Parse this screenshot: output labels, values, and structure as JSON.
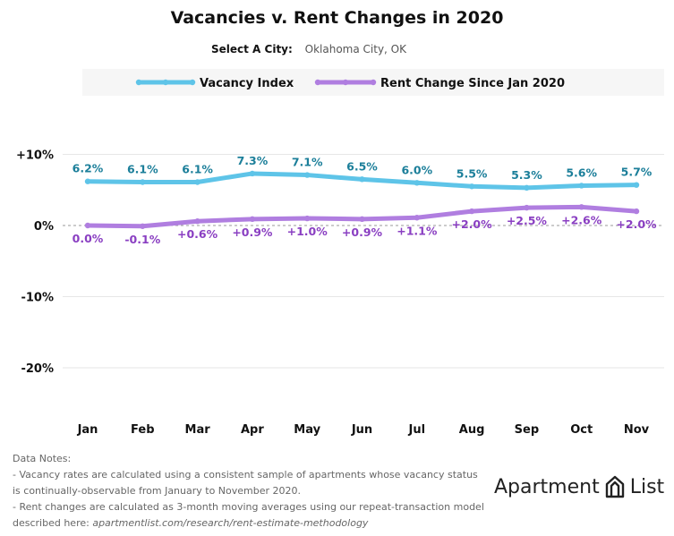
{
  "title": "Vacancies v. Rent Changes in 2020",
  "city_selector": {
    "label": "Select A City:",
    "value": "Oklahoma City, OK"
  },
  "colors": {
    "vacancy": "#5ec4e8",
    "rent": "#b07ee0",
    "vacancy_label": "#1c7f9a",
    "rent_label": "#8a3fc2"
  },
  "chart_data": {
    "type": "line",
    "categories": [
      "Jan",
      "Feb",
      "Mar",
      "Apr",
      "May",
      "Jun",
      "Jul",
      "Aug",
      "Sep",
      "Oct",
      "Nov"
    ],
    "series": [
      {
        "name": "Vacancy Index",
        "values": [
          6.2,
          6.1,
          6.1,
          7.3,
          7.1,
          6.5,
          6.0,
          5.5,
          5.3,
          5.6,
          5.7
        ],
        "labels": [
          "6.2%",
          "6.1%",
          "6.1%",
          "7.3%",
          "7.1%",
          "6.5%",
          "6.0%",
          "5.5%",
          "5.3%",
          "5.6%",
          "5.7%"
        ]
      },
      {
        "name": "Rent Change Since Jan 2020",
        "values": [
          0.0,
          -0.1,
          0.6,
          0.9,
          1.0,
          0.9,
          1.1,
          2.0,
          2.5,
          2.6,
          2.0
        ],
        "labels": [
          "0.0%",
          "-0.1%",
          "+0.6%",
          "+0.9%",
          "+1.0%",
          "+0.9%",
          "+1.1%",
          "+2.0%",
          "+2.5%",
          "+2.6%",
          "+2.0%"
        ]
      }
    ],
    "yticks": [
      10,
      0,
      -10,
      -20
    ],
    "ytick_labels": [
      "+10%",
      "0%",
      "-10%",
      "-20%"
    ],
    "ylim": [
      -27,
      13
    ],
    "grid": true,
    "legend_position": "top"
  },
  "notes": {
    "heading": "Data Notes:",
    "lines": [
      "- Vacancy rates are calculated using a consistent sample of apartments whose vacancy status",
      "is continually-observable from January to November 2020.",
      "- Rent changes are calculated as 3-month moving averages using our repeat-transaction model"
    ],
    "last_prefix": "described here: ",
    "last_url": "apartmentlist.com/research/rent-estimate-methodology"
  },
  "logo": {
    "left": "Apartment",
    "right": "List",
    "icon": "apartment-list-logo-icon"
  }
}
